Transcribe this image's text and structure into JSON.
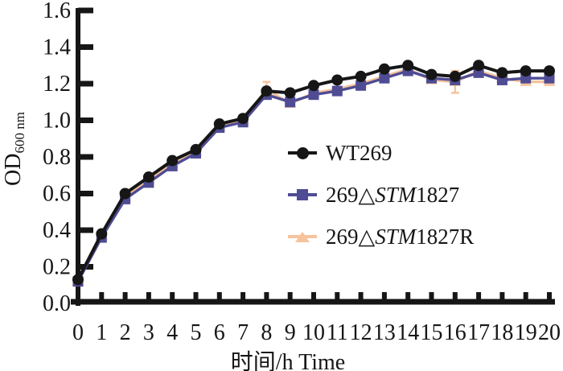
{
  "chart_data": {
    "type": "line",
    "title": "",
    "xlabel": "时间/h Time",
    "ylabel": {
      "text": "OD",
      "subscript": "600 nm"
    },
    "x": [
      0,
      1,
      2,
      3,
      4,
      5,
      6,
      7,
      8,
      9,
      10,
      11,
      12,
      13,
      14,
      15,
      16,
      17,
      18,
      19,
      20
    ],
    "x_tick_labels": [
      "0",
      "1",
      "2",
      "3",
      "4",
      "5",
      "6",
      "7",
      "8",
      "9",
      "10",
      "11",
      "12",
      "13",
      "14",
      "15",
      "16",
      "17",
      "18",
      "19",
      "20"
    ],
    "y_tick_labels": [
      "0.0",
      "0.2",
      "0.4",
      "0.6",
      "0.8",
      "1.0",
      "1.2",
      "1.4",
      "1.6"
    ],
    "xlim": [
      0,
      20
    ],
    "ylim": [
      0,
      1.6
    ],
    "grid": false,
    "legend_position": "inside-center-right",
    "axis_color": "#161616",
    "series": [
      {
        "name": "WT269",
        "label_pre": "WT269",
        "label_italic": "",
        "label_post": "",
        "marker": "circle",
        "color": "#161616",
        "values": [
          0.13,
          0.38,
          0.6,
          0.69,
          0.78,
          0.84,
          0.98,
          1.01,
          1.16,
          1.15,
          1.19,
          1.22,
          1.24,
          1.28,
          1.3,
          1.25,
          1.24,
          1.3,
          1.26,
          1.27,
          1.27
        ],
        "errors": [
          0,
          0,
          0,
          0,
          0,
          0,
          0,
          0,
          0,
          0,
          0,
          0,
          0,
          0,
          0,
          0,
          0,
          0,
          0,
          0,
          0
        ]
      },
      {
        "name": "269△STM1827",
        "label_pre": "269△",
        "label_italic": "STM",
        "label_post": "1827",
        "marker": "square",
        "color": "#4f4c94",
        "values": [
          0.12,
          0.36,
          0.57,
          0.66,
          0.75,
          0.82,
          0.96,
          0.99,
          1.14,
          1.1,
          1.14,
          1.16,
          1.19,
          1.23,
          1.27,
          1.23,
          1.22,
          1.26,
          1.22,
          1.23,
          1.23
        ],
        "errors": [
          0,
          0,
          0,
          0,
          0,
          0,
          0,
          0,
          0,
          0,
          0,
          0,
          0,
          0,
          0,
          0,
          0,
          0,
          0,
          0,
          0
        ]
      },
      {
        "name": "269△STM1827R",
        "label_pre": "269△",
        "label_italic": "STM",
        "label_post": "1827R",
        "marker": "triangle",
        "color": "#f6c39d",
        "values": [
          0.12,
          0.37,
          0.58,
          0.68,
          0.76,
          0.83,
          0.97,
          1.0,
          1.17,
          1.09,
          1.15,
          1.17,
          1.2,
          1.24,
          1.28,
          1.22,
          1.21,
          1.27,
          1.23,
          1.21,
          1.21
        ],
        "errors": [
          0,
          0,
          0,
          0,
          0,
          0,
          0,
          0,
          0.04,
          0,
          0,
          0,
          0,
          0,
          0,
          0,
          0.06,
          0,
          0,
          0,
          0
        ]
      }
    ]
  }
}
